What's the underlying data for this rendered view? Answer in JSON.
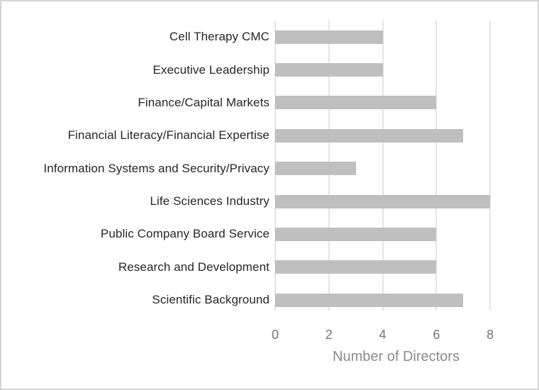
{
  "chart_data": {
    "type": "bar",
    "orientation": "horizontal",
    "title": "",
    "categories": [
      "Cell Therapy CMC",
      "Executive Leadership",
      "Finance/Capital Markets",
      "Financial Literacy/Financial Expertise",
      "Information Systems and Security/Privacy",
      "Life Sciences Industry",
      "Public Company Board Service",
      "Research and Development",
      "Scientific Background"
    ],
    "values": [
      4,
      4,
      6,
      7,
      3,
      8,
      6,
      6,
      7
    ],
    "xlabel": "Number of Directors",
    "ylabel": "",
    "x_ticks": [
      "0",
      "2",
      "4",
      "6",
      "8"
    ],
    "x_tick_values": [
      0,
      2,
      4,
      6,
      8
    ],
    "xlim": [
      0,
      9
    ],
    "grid": "vertical-major",
    "legend": "none",
    "bar_color": "#bfbfbf",
    "gridline_color": "#e4e4e4",
    "category_label_color": "#262626",
    "tick_label_color": "#757575",
    "axis_title_color": "#8c8c8c",
    "background_color": "#ffffff",
    "border_color": "#d5d5d5"
  }
}
